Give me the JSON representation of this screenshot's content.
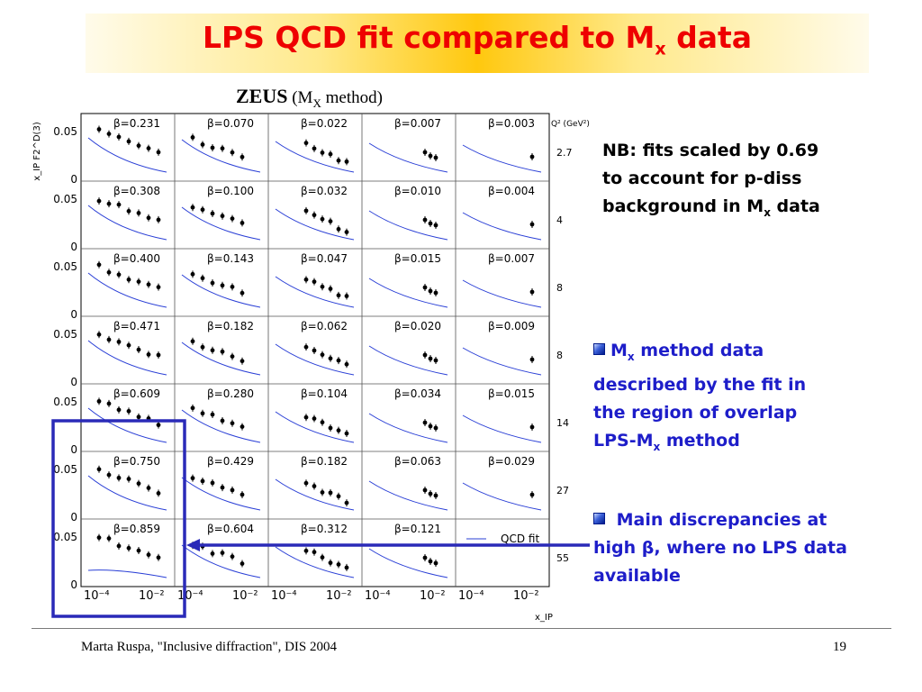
{
  "slide": {
    "title_main": "LPS QCD fit compared to M",
    "title_sub": "x",
    "title_end": " data"
  },
  "plot": {
    "heading_experiment": "ZEUS",
    "heading_open": " (M",
    "heading_sub": "X",
    "heading_close": " method)",
    "y_axis_label": "x_IP F2^D(3)",
    "x_axis_label": "x_IP",
    "q2_header": "Q² (GeV²)",
    "legend_label": "QCD fit",
    "y_tick_labels": [
      "0.05",
      "0"
    ],
    "x_tick_labels": [
      "10⁻⁴",
      "10⁻²"
    ],
    "q2_values": [
      "2.7",
      "4",
      "8",
      "8",
      "14",
      "27",
      "55"
    ],
    "beta_values": [
      [
        "0.231",
        "0.070",
        "0.022",
        "0.007",
        "0.003"
      ],
      [
        "0.308",
        "0.100",
        "0.032",
        "0.010",
        "0.004"
      ],
      [
        "0.400",
        "0.143",
        "0.047",
        "0.015",
        "0.007"
      ],
      [
        "0.471",
        "0.182",
        "0.062",
        "0.020",
        "0.009"
      ],
      [
        "0.609",
        "0.280",
        "0.104",
        "0.034",
        "0.015"
      ],
      [
        "0.750",
        "0.429",
        "0.182",
        "0.063",
        "0.029"
      ],
      [
        "0.859",
        "0.604",
        "0.312",
        "0.121",
        ""
      ]
    ],
    "colors": {
      "fit_curve": "#2a3fd6",
      "highlight_box": "#2a2ab8",
      "arrow": "#2a2ab8"
    }
  },
  "notes": {
    "nb_line1": "NB: fits scaled by 0.69",
    "nb_line2": "to account for p-diss",
    "nb_line3_main": "background in M",
    "nb_line3_sub": "x",
    "nb_line3_end": " data"
  },
  "bullets": [
    {
      "p1_main": "M",
      "p1_sub": "x",
      "p1_end": " method data",
      "line2": "described by the fit in",
      "line3": "the region of overlap",
      "p4_main": "LPS-M",
      "p4_sub": "x",
      "p4_end": " method"
    },
    {
      "line1": " Main discrepancies at",
      "line2": "high β, where no LPS data",
      "line3": "available"
    }
  ],
  "footer": {
    "text": "Marta Ruspa, \"Inclusive diffraction\", DIS 2004",
    "page": "19"
  }
}
